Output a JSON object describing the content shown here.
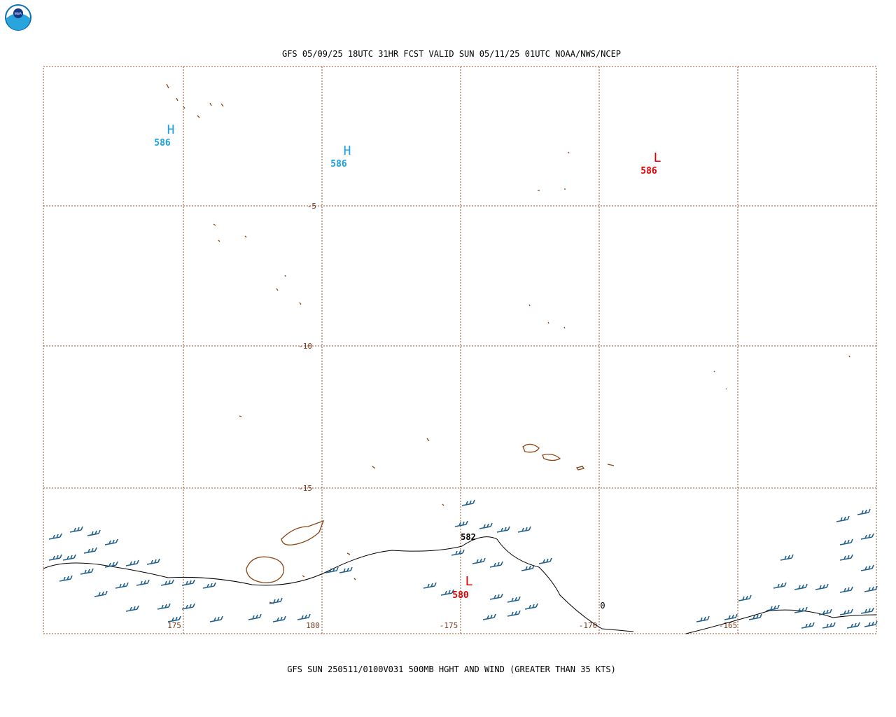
{
  "header": {
    "title": "GFS 05/09/25 18UTC 31HR FCST VALID SUN 05/11/25 01UTC NOAA/NWS/NCEP",
    "logo": "NOAA"
  },
  "map": {
    "lat_labels": [
      "-5",
      "-10",
      "-15"
    ],
    "lon_labels": [
      "175",
      "180",
      "-175",
      "-170",
      "-165"
    ],
    "centers": [
      {
        "symbol": "H",
        "value": "586"
      },
      {
        "symbol": "H",
        "value": "586"
      },
      {
        "symbol": "L",
        "value": "586"
      },
      {
        "symbol": "L",
        "value": "580"
      }
    ],
    "contour_labels": [
      "582",
      "0"
    ]
  },
  "footer": {
    "caption": "GFS SUN 250511/0100V031 500MB HGHT AND WIND (GREATER THAN 35 KTS)"
  }
}
